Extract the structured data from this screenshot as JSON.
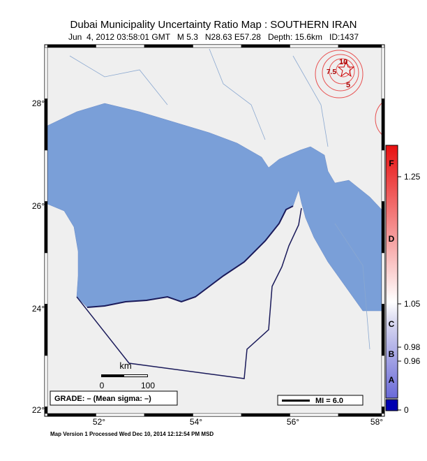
{
  "header": {
    "title": "Dubai Municipality Uncertainty Ratio Map : SOUTHERN IRAN",
    "subtitle": "Jun  4, 2012 03:58:01 GMT   M 5.3   N28.63 E57.28   Depth: 15.6km   ID:1437"
  },
  "map": {
    "lat_labels": [
      "28°",
      "26°",
      "24°",
      "22°"
    ],
    "lon_labels": [
      "52°",
      "54°",
      "56°",
      "58°"
    ],
    "contour_labels": [
      "10",
      "7.5",
      "5"
    ]
  },
  "scale_bar": {
    "unit": "km",
    "labels": [
      "0",
      "100"
    ]
  },
  "grade": "GRADE: – (Mean sigma: –)",
  "legend": {
    "label": "MI = 6.0"
  },
  "colorbar": {
    "grades": [
      "F",
      "D",
      "C",
      "B",
      "A"
    ],
    "ticks": [
      "1.25",
      "1.05",
      "0.98",
      "0.96",
      "0"
    ]
  },
  "footer": "Map Version 1 Processed Wed Dec 10, 2014 12:12:54 PM MSD"
}
